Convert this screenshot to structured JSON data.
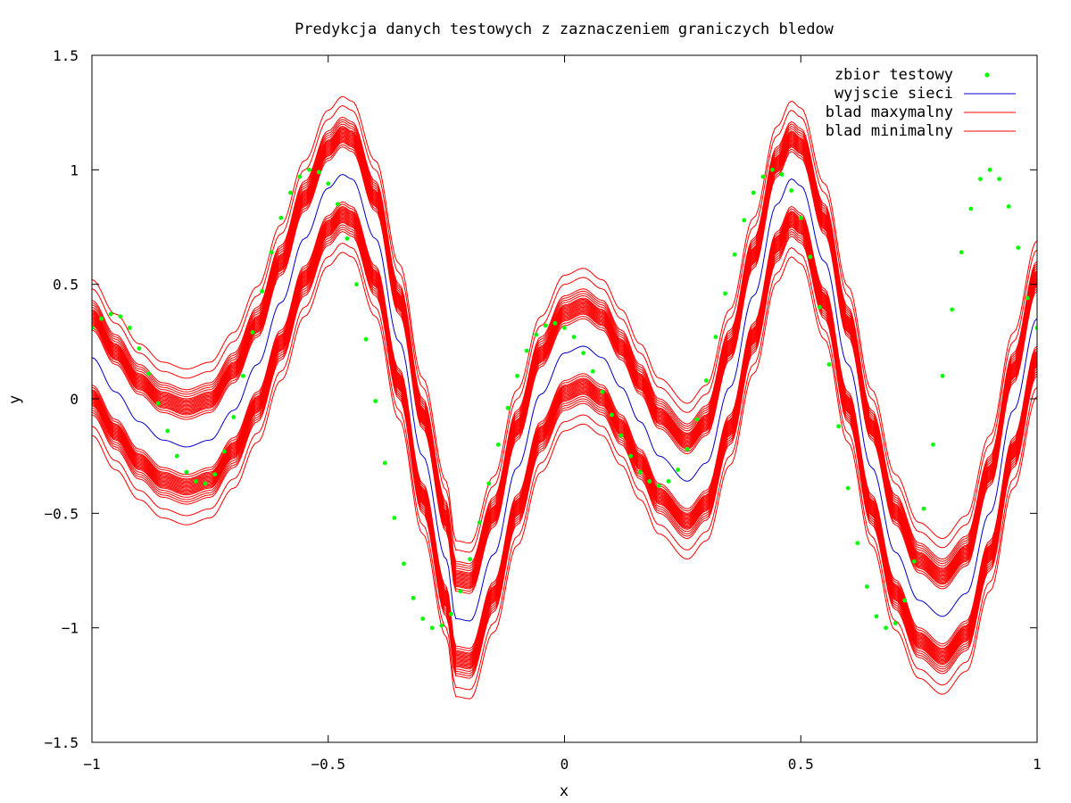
{
  "chart_data": {
    "type": "line",
    "title": "Predykcja danych testowych z zaznaczeniem graniczych bledow",
    "xlabel": "x",
    "ylabel": "y",
    "xlim": [
      -1,
      1
    ],
    "ylim": [
      -1.5,
      1.5
    ],
    "x_ticks": [
      "-1",
      "-0.5",
      "0",
      "0.5",
      "1"
    ],
    "y_ticks": [
      "-1.5",
      "-1",
      "-0.5",
      "0",
      "0.5",
      "1",
      "1.5"
    ],
    "grid": false,
    "legend_position": "top-right",
    "legend": [
      {
        "label": "zbior testowy",
        "color": "#00ff00",
        "style": "points"
      },
      {
        "label": "wyjscie sieci",
        "color": "#0000cc",
        "style": "line"
      },
      {
        "label": "blad maxymalny",
        "color": "#ff0000",
        "style": "line"
      },
      {
        "label": "blad minimalny",
        "color": "#ff0000",
        "style": "line"
      }
    ],
    "colors": {
      "points": "#00ff00",
      "network": "#0000cc",
      "error": "#ff0000"
    },
    "series": [
      {
        "name": "zbior testowy",
        "x": [
          -1.0,
          -0.98,
          -0.96,
          -0.94,
          -0.92,
          -0.9,
          -0.88,
          -0.86,
          -0.84,
          -0.82,
          -0.8,
          -0.78,
          -0.76,
          -0.74,
          -0.72,
          -0.7,
          -0.68,
          -0.66,
          -0.64,
          -0.62,
          -0.6,
          -0.58,
          -0.56,
          -0.54,
          -0.52,
          -0.5,
          -0.48,
          -0.46,
          -0.44,
          -0.42,
          -0.4,
          -0.38,
          -0.36,
          -0.34,
          -0.32,
          -0.3,
          -0.28,
          -0.26,
          -0.24,
          -0.22,
          -0.2,
          -0.18,
          -0.16,
          -0.14,
          -0.12,
          -0.1,
          -0.08,
          -0.06,
          -0.04,
          -0.02,
          0.0,
          0.02,
          0.04,
          0.06,
          0.08,
          0.1,
          0.12,
          0.14,
          0.16,
          0.18,
          0.2,
          0.22,
          0.24,
          0.26,
          0.28,
          0.3,
          0.32,
          0.34,
          0.36,
          0.38,
          0.4,
          0.42,
          0.44,
          0.46,
          0.48,
          0.5,
          0.52,
          0.54,
          0.56,
          0.58,
          0.6,
          0.62,
          0.64,
          0.66,
          0.68,
          0.7,
          0.72,
          0.74,
          0.76,
          0.78,
          0.8,
          0.82,
          0.84,
          0.86,
          0.88,
          0.9,
          0.92,
          0.94,
          0.96,
          0.98,
          1.0
        ],
        "y": [
          0.31,
          0.35,
          0.37,
          0.36,
          0.31,
          0.22,
          0.11,
          -0.02,
          -0.14,
          -0.25,
          -0.32,
          -0.36,
          -0.37,
          -0.33,
          -0.23,
          -0.08,
          0.1,
          0.29,
          0.47,
          0.64,
          0.79,
          0.9,
          0.97,
          1.0,
          0.99,
          0.94,
          0.85,
          0.7,
          0.5,
          0.26,
          -0.01,
          -0.28,
          -0.52,
          -0.72,
          -0.87,
          -0.96,
          -1.0,
          -0.99,
          -0.94,
          -0.84,
          -0.7,
          -0.54,
          -0.37,
          -0.2,
          -0.04,
          0.1,
          0.21,
          0.28,
          0.32,
          0.33,
          0.31,
          0.27,
          0.2,
          0.12,
          0.03,
          -0.07,
          -0.16,
          -0.25,
          -0.32,
          -0.36,
          -0.38,
          -0.36,
          -0.31,
          -0.22,
          -0.09,
          0.08,
          0.27,
          0.46,
          0.63,
          0.78,
          0.9,
          0.97,
          1.0,
          0.98,
          0.91,
          0.79,
          0.62,
          0.4,
          0.15,
          -0.12,
          -0.39,
          -0.63,
          -0.82,
          -0.95,
          -1.0,
          -0.98,
          -0.88,
          -0.71,
          -0.48,
          -0.2,
          0.1,
          0.39,
          0.64,
          0.83,
          0.96,
          1.0,
          0.96,
          0.84,
          0.66,
          0.44,
          0.31
        ]
      },
      {
        "name": "wyjscie sieci",
        "x": [
          -1.0,
          -0.95,
          -0.9,
          -0.85,
          -0.8,
          -0.75,
          -0.7,
          -0.65,
          -0.6,
          -0.55,
          -0.5,
          -0.47,
          -0.45,
          -0.4,
          -0.35,
          -0.3,
          -0.25,
          -0.23,
          -0.2,
          -0.15,
          -0.1,
          -0.05,
          0.0,
          0.04,
          0.08,
          0.12,
          0.16,
          0.2,
          0.26,
          0.3,
          0.35,
          0.4,
          0.45,
          0.48,
          0.5,
          0.55,
          0.6,
          0.65,
          0.7,
          0.75,
          0.8,
          0.85,
          0.9,
          0.95,
          1.0
        ],
        "y": [
          0.18,
          0.03,
          -0.1,
          -0.18,
          -0.21,
          -0.18,
          -0.05,
          0.15,
          0.42,
          0.7,
          0.92,
          0.98,
          0.96,
          0.7,
          0.25,
          -0.25,
          -0.7,
          -0.96,
          -0.97,
          -0.68,
          -0.3,
          0.02,
          0.2,
          0.23,
          0.18,
          0.05,
          -0.1,
          -0.25,
          -0.36,
          -0.28,
          0.05,
          0.45,
          0.85,
          0.96,
          0.93,
          0.6,
          0.15,
          -0.3,
          -0.67,
          -0.88,
          -0.95,
          -0.85,
          -0.5,
          -0.05,
          0.35
        ]
      }
    ],
    "error_band": {
      "name_upper": "blad maxymalny",
      "name_lower": "blad minimalny",
      "offsets_upper": [
        0.12,
        0.13,
        0.14,
        0.145,
        0.15,
        0.155,
        0.16,
        0.165,
        0.17,
        0.175,
        0.18,
        0.185,
        0.19,
        0.195,
        0.2,
        0.205,
        0.21,
        0.22,
        0.23,
        0.24,
        0.25,
        0.3,
        0.34
      ],
      "offsets_lower": [
        -0.12,
        -0.13,
        -0.14,
        -0.145,
        -0.15,
        -0.155,
        -0.16,
        -0.165,
        -0.17,
        -0.175,
        -0.18,
        -0.185,
        -0.19,
        -0.195,
        -0.2,
        -0.205,
        -0.21,
        -0.22,
        -0.23,
        -0.24,
        -0.25,
        -0.3,
        -0.34
      ]
    }
  }
}
